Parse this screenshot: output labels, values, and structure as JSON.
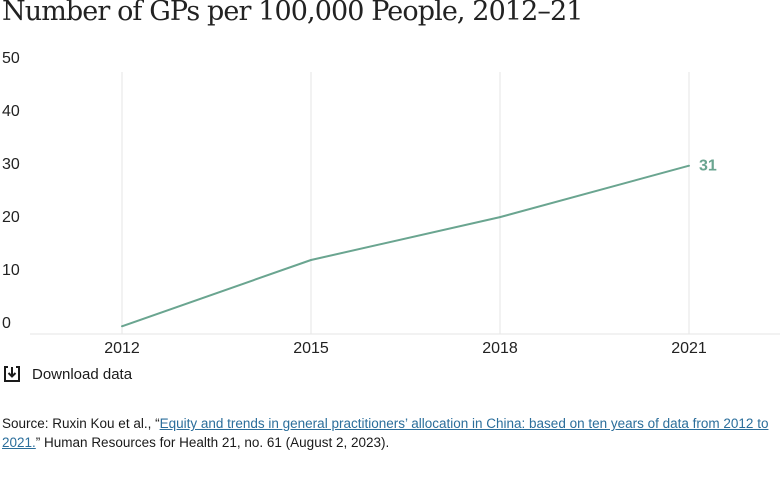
{
  "title": "Number of GPs per 100,000 People, 2012–21",
  "chart_data": {
    "type": "line",
    "x": [
      "2012",
      "2015",
      "2018",
      "2021"
    ],
    "series": [
      {
        "values": [
          0.7,
          13.2,
          21.3,
          31
        ]
      }
    ],
    "end_label": "31",
    "ylim": [
      0,
      50
    ],
    "yticks": [
      "0",
      "10",
      "20",
      "30",
      "40",
      "50"
    ],
    "xlabel": "",
    "ylabel": "",
    "grid": "vertical",
    "colors": {
      "line": "#6aa590",
      "grid": "#e6e6e6"
    }
  },
  "download": {
    "label": "Download data",
    "icon": "download-icon"
  },
  "source": {
    "prefix": "Source: Ruxin Kou et al., “",
    "link_text": "Equity and trends in general practitioners’ allocation in China: based on ten years of data from 2012 to 2021.",
    "suffix": "” Human Resources for Health 21, no. 61 (August 2, 2023)."
  }
}
